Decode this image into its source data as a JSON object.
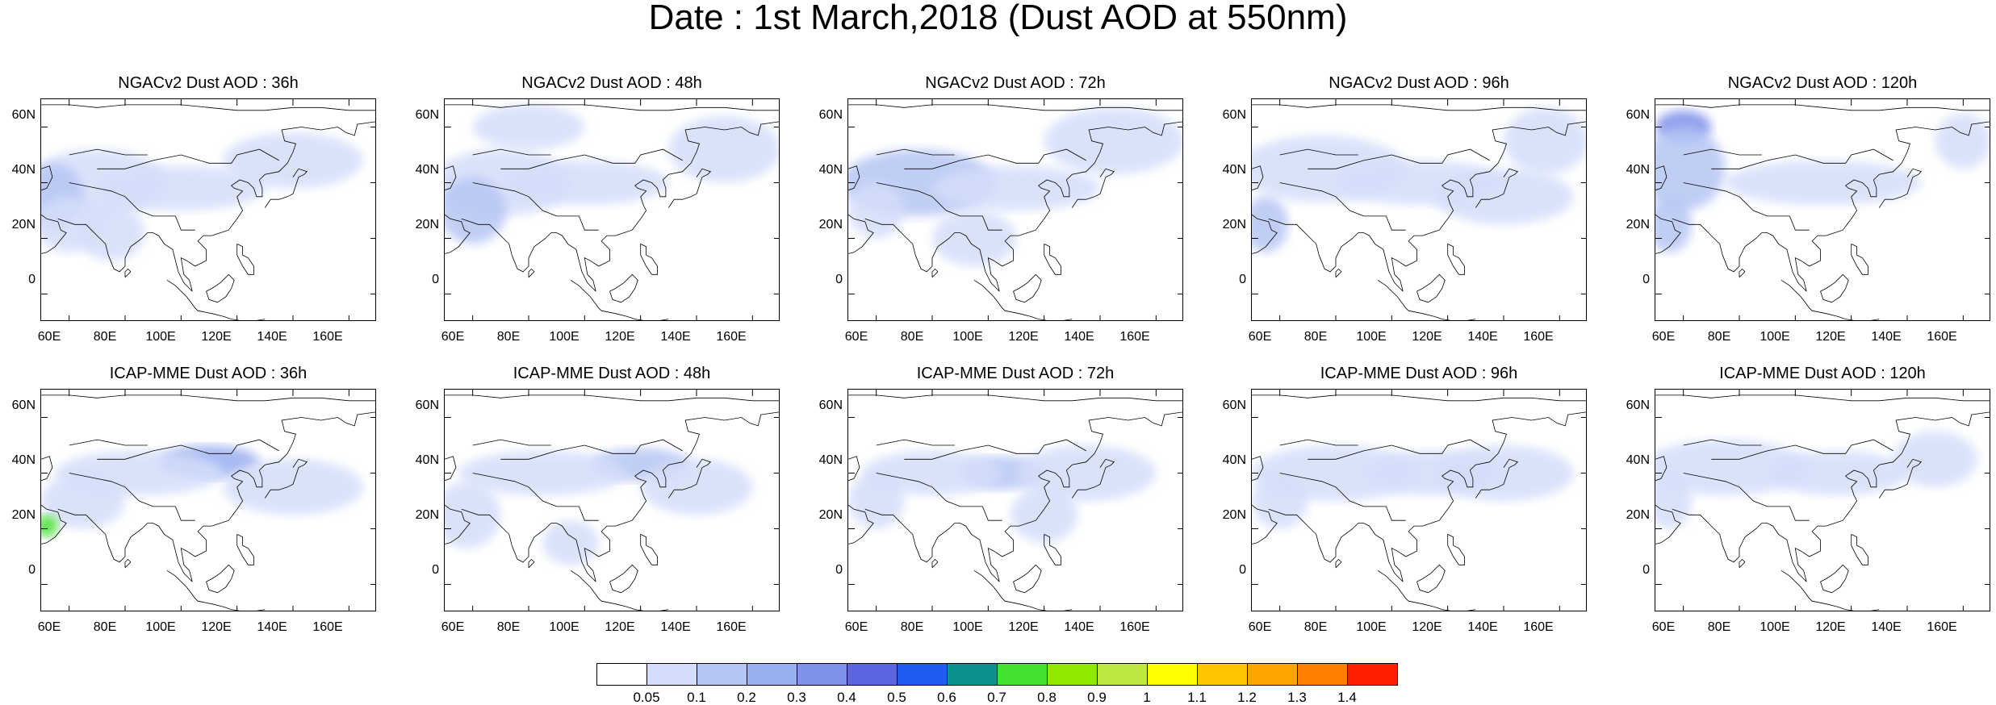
{
  "title": "Date : 1st March,2018 (Dust AOD at 550nm)",
  "lat_ticks": [
    "60N",
    "40N",
    "20N",
    "0"
  ],
  "lon_ticks": [
    "60E",
    "80E",
    "100E",
    "120E",
    "140E",
    "160E"
  ],
  "panels": [
    {
      "title": "NGACv2 Dust AOD : 36h",
      "model": "NGACv2",
      "lead": "36h"
    },
    {
      "title": "NGACv2 Dust AOD : 48h",
      "model": "NGACv2",
      "lead": "48h"
    },
    {
      "title": "NGACv2 Dust AOD : 72h",
      "model": "NGACv2",
      "lead": "72h"
    },
    {
      "title": "NGACv2 Dust AOD : 96h",
      "model": "NGACv2",
      "lead": "96h"
    },
    {
      "title": "NGACv2 Dust AOD : 120h",
      "model": "NGACv2",
      "lead": "120h"
    },
    {
      "title": "ICAP-MME Dust AOD : 36h",
      "model": "ICAP-MME",
      "lead": "36h"
    },
    {
      "title": "ICAP-MME Dust AOD : 48h",
      "model": "ICAP-MME",
      "lead": "48h"
    },
    {
      "title": "ICAP-MME Dust AOD : 72h",
      "model": "ICAP-MME",
      "lead": "72h"
    },
    {
      "title": "ICAP-MME Dust AOD : 96h",
      "model": "ICAP-MME",
      "lead": "96h"
    },
    {
      "title": "ICAP-MME Dust AOD : 120h",
      "model": "ICAP-MME",
      "lead": "120h"
    }
  ],
  "colorbar": {
    "labels": [
      "0.05",
      "0.1",
      "0.2",
      "0.3",
      "0.4",
      "0.5",
      "0.6",
      "0.7",
      "0.8",
      "0.9",
      "1",
      "1.1",
      "1.2",
      "1.3",
      "1.4"
    ],
    "colors": [
      "#ffffff",
      "#d4defa",
      "#b6c6f4",
      "#9aaff0",
      "#7f92ea",
      "#5b66e0",
      "#1f5cf0",
      "#0d9090",
      "#44e030",
      "#8ee800",
      "#bce840",
      "#ffff00",
      "#ffc400",
      "#ffa400",
      "#ff8000",
      "#ff2000"
    ]
  }
}
